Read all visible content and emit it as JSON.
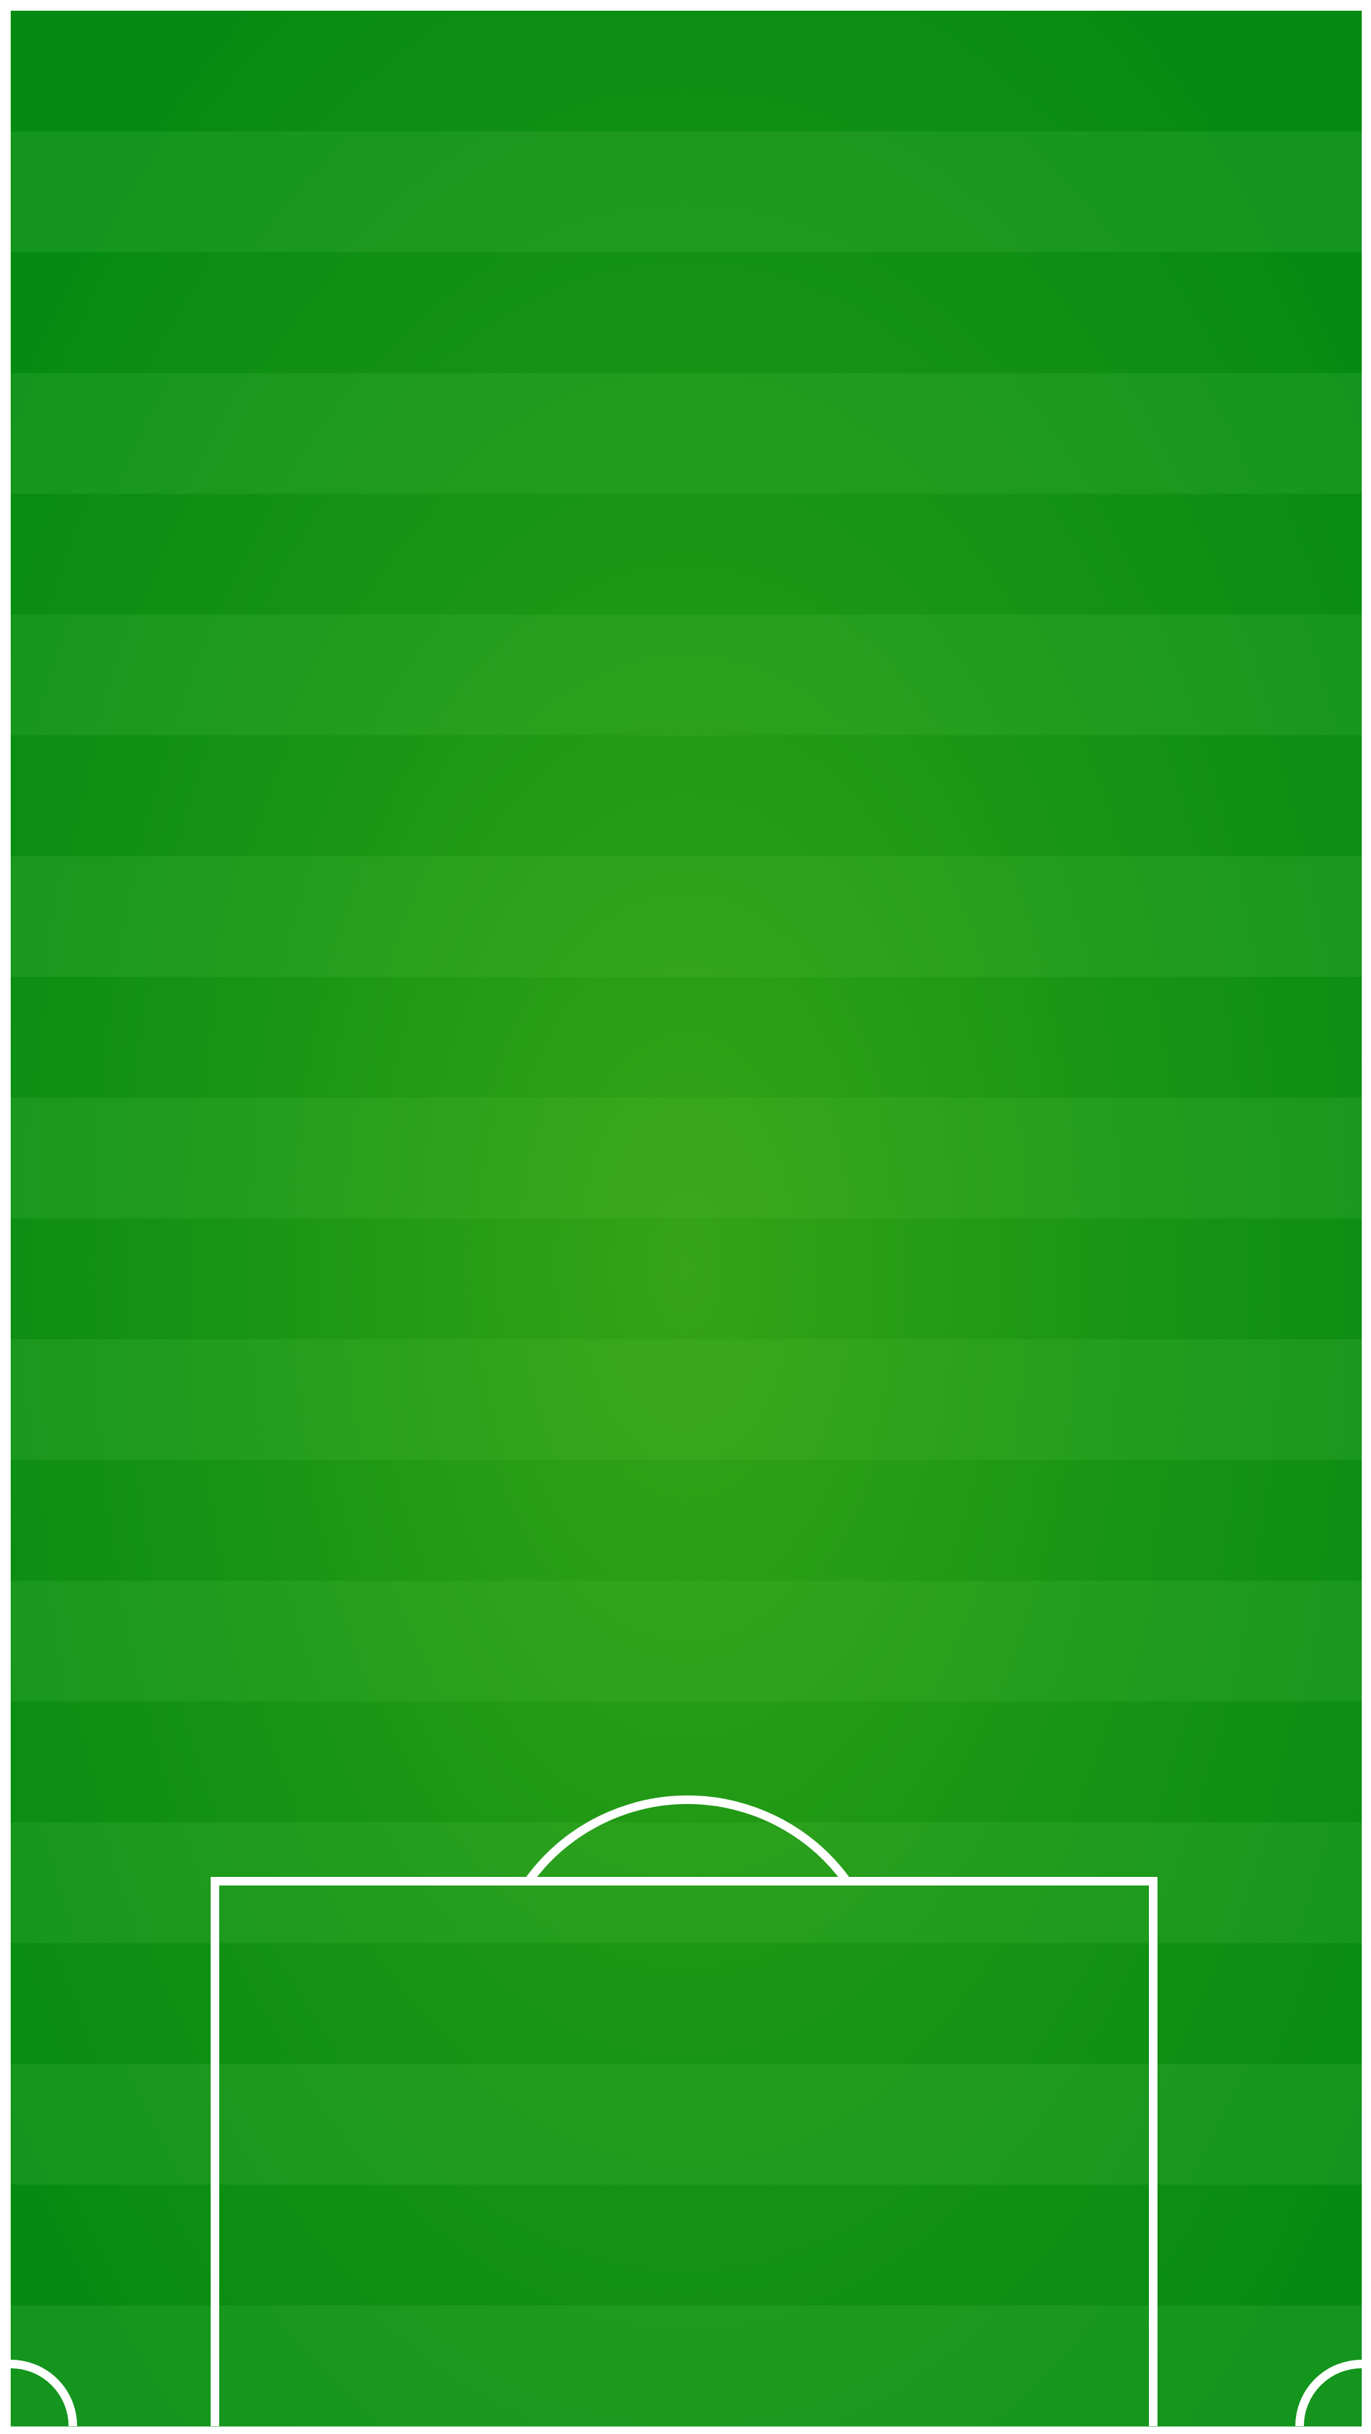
{
  "pitch": {
    "view": "half-pitch",
    "stripe_count": 20,
    "colors": {
      "background": "#ffffff",
      "stripe_dark": "#068b12",
      "stripe_light": "#14951d",
      "center_glow": "#5cb81c",
      "center_glow_dark_stripe": "#07b01a",
      "lines": "#ffffff"
    },
    "markings": [
      "penalty-box",
      "penalty-arc",
      "corner-arc-left",
      "corner-arc-right"
    ]
  }
}
